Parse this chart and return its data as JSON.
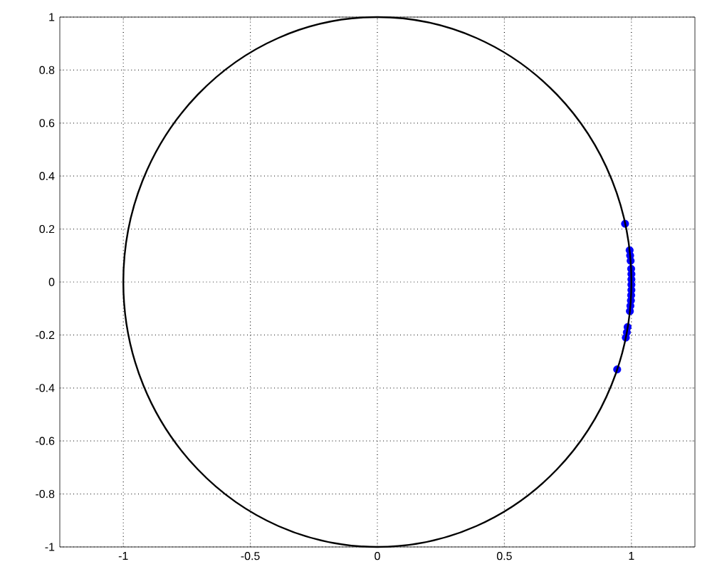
{
  "chart_data": {
    "type": "scatter",
    "marker": "circle",
    "xlim": [
      -1.25,
      1.25
    ],
    "ylim": [
      -1,
      1
    ],
    "xticks": [
      -1,
      -0.5,
      0,
      0.5,
      1
    ],
    "yticks": [
      -1,
      -0.8,
      -0.6,
      -0.4,
      -0.2,
      0,
      0.2,
      0.4,
      0.6,
      0.8,
      1
    ],
    "grid": true,
    "series": [
      {
        "color": "#0000ff",
        "x": [
          0.975,
          0.993,
          0.995,
          0.997,
          0.999,
          1.0,
          1.0,
          1.0,
          1.0,
          0.999,
          0.998,
          0.996,
          0.994,
          0.985,
          0.982,
          0.978,
          0.944
        ],
        "values": [
          0.22,
          0.12,
          0.1,
          0.08,
          0.05,
          0.03,
          0.01,
          -0.01,
          -0.03,
          -0.05,
          -0.07,
          -0.09,
          -0.11,
          -0.17,
          -0.19,
          -0.21,
          -0.33
        ]
      }
    ]
  }
}
